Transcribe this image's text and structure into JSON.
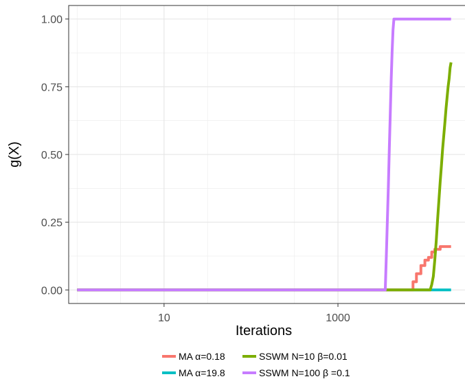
{
  "chart_data": {
    "type": "line",
    "xlabel": "Iterations",
    "ylabel": "g(X)",
    "x_scale": "log10",
    "xlim": [
      0.8,
      30000
    ],
    "ylim": [
      -0.05,
      1.05
    ],
    "x_ticks": [
      10,
      1000
    ],
    "x_tick_labels": [
      "10",
      "1000"
    ],
    "y_ticks": [
      0,
      0.25,
      0.5,
      0.75,
      1.0
    ],
    "y_tick_labels": [
      "0.00",
      "0.25",
      "0.50",
      "0.75",
      "1.00"
    ],
    "grid": true,
    "legend_position": "bottom",
    "series": [
      {
        "name": "MA α=0.18",
        "color": "#F8766D",
        "x": [
          1,
          7000,
          7300,
          7300,
          8000,
          8000,
          9000,
          9000,
          10000,
          10000,
          11000,
          11000,
          12000,
          12000,
          13000,
          13000,
          15000,
          15000,
          20000
        ],
        "y": [
          0,
          0,
          0,
          0.03,
          0.03,
          0.06,
          0.06,
          0.09,
          0.09,
          0.11,
          0.11,
          0.12,
          0.12,
          0.14,
          0.14,
          0.15,
          0.15,
          0.16,
          0.16
        ]
      },
      {
        "name": "MA α=19.8",
        "color": "#00BFC4",
        "x": [
          1,
          20000
        ],
        "y": [
          0,
          0
        ]
      },
      {
        "name": "SSWM N=10  β=0.01",
        "color": "#7CAE00",
        "x": [
          1,
          11500,
          12000,
          12500,
          13000,
          13500,
          14000,
          14500,
          15000,
          15500,
          16000,
          16500,
          17000,
          17500,
          18000,
          18500,
          19000,
          19500,
          20000
        ],
        "y": [
          0,
          0,
          0.02,
          0.05,
          0.11,
          0.18,
          0.26,
          0.33,
          0.4,
          0.46,
          0.52,
          0.57,
          0.62,
          0.67,
          0.71,
          0.75,
          0.78,
          0.82,
          0.84
        ]
      },
      {
        "name": "SSWM N=100  β =0.1",
        "color": "#C77CFF",
        "x": [
          1,
          3500,
          3600,
          3700,
          3800,
          3900,
          4000,
          4100,
          4200,
          4300,
          4400,
          20000
        ],
        "y": [
          0,
          0,
          0.12,
          0.25,
          0.38,
          0.52,
          0.65,
          0.78,
          0.88,
          0.96,
          1.0,
          1.0
        ]
      }
    ]
  }
}
